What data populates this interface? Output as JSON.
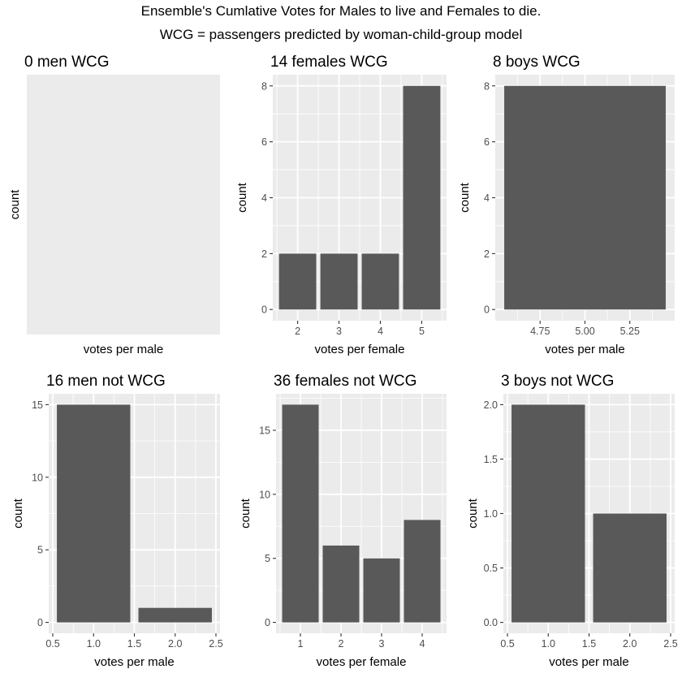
{
  "figure": {
    "title": "Ensemble's Cumlative Votes for Males to live and Females to die.",
    "subtitle": "WCG = passengers predicted by woman-child-group model"
  },
  "colors": {
    "panel_bg": "#EBEBEB",
    "grid": "#FFFFFF",
    "bar": "#595959",
    "tick_text": "#4D4D4D",
    "text": "#000000"
  },
  "chart_data": [
    {
      "type": "bar",
      "title": "0 men WCG",
      "xlabel": "votes per male",
      "ylabel": "count",
      "empty": true,
      "bars": [],
      "xlim": [
        0,
        1
      ],
      "ylim": [
        0,
        1
      ],
      "xticks": [],
      "yticks": []
    },
    {
      "type": "bar",
      "title": "14 females WCG",
      "xlabel": "votes per female",
      "ylabel": "count",
      "bars": [
        {
          "x": 2,
          "value": 2
        },
        {
          "x": 3,
          "value": 2
        },
        {
          "x": 4,
          "value": 2
        },
        {
          "x": 5,
          "value": 8
        }
      ],
      "bar_width": 0.9,
      "xlim": [
        1.4,
        5.6
      ],
      "ylim": [
        -0.4,
        8.4
      ],
      "xticks": [
        2,
        3,
        4,
        5
      ],
      "xtick_labels": [
        "2",
        "3",
        "4",
        "5"
      ],
      "yticks": [
        0,
        2,
        4,
        6,
        8
      ],
      "ytick_labels": [
        "0",
        "2",
        "4",
        "6",
        "8"
      ]
    },
    {
      "type": "bar",
      "title": "8 boys WCG",
      "xlabel": "votes per male",
      "ylabel": "count",
      "bars": [
        {
          "x": 5,
          "value": 8
        }
      ],
      "bar_width": 0.9,
      "xlim": [
        4.5,
        5.5
      ],
      "ylim": [
        -0.4,
        8.4
      ],
      "xticks": [
        4.75,
        5.0,
        5.25
      ],
      "xtick_labels": [
        "4.75",
        "5.00",
        "5.25"
      ],
      "yticks": [
        0,
        2,
        4,
        6,
        8
      ],
      "ytick_labels": [
        "0",
        "2",
        "4",
        "6",
        "8"
      ]
    },
    {
      "type": "bar",
      "title": "16 men not WCG",
      "xlabel": "votes per male",
      "ylabel": "count",
      "bars": [
        {
          "x": 1,
          "value": 15
        },
        {
          "x": 2,
          "value": 1
        }
      ],
      "bar_width": 0.9,
      "xlim": [
        0.45,
        2.55
      ],
      "ylim": [
        -0.75,
        15.75
      ],
      "xticks": [
        0.5,
        1.0,
        1.5,
        2.0,
        2.5
      ],
      "xtick_labels": [
        "0.5",
        "1.0",
        "1.5",
        "2.0",
        "2.5"
      ],
      "yticks": [
        0,
        5,
        10,
        15
      ],
      "ytick_labels": [
        "0",
        "5",
        "10",
        "15"
      ]
    },
    {
      "type": "bar",
      "title": "36 females not WCG",
      "xlabel": "votes per female",
      "ylabel": "count",
      "bars": [
        {
          "x": 1,
          "value": 17
        },
        {
          "x": 2,
          "value": 6
        },
        {
          "x": 3,
          "value": 5
        },
        {
          "x": 4,
          "value": 8
        }
      ],
      "bar_width": 0.9,
      "xlim": [
        0.4,
        4.6
      ],
      "ylim": [
        -0.85,
        17.85
      ],
      "xticks": [
        1,
        2,
        3,
        4
      ],
      "xtick_labels": [
        "1",
        "2",
        "3",
        "4"
      ],
      "yticks": [
        0,
        5,
        10,
        15
      ],
      "ytick_labels": [
        "0",
        "5",
        "10",
        "15"
      ]
    },
    {
      "type": "bar",
      "title": "3 boys not WCG",
      "xlabel": "votes per male",
      "ylabel": "count",
      "bars": [
        {
          "x": 1,
          "value": 2
        },
        {
          "x": 2,
          "value": 1
        }
      ],
      "bar_width": 0.9,
      "xlim": [
        0.45,
        2.55
      ],
      "ylim": [
        -0.1,
        2.1
      ],
      "xticks": [
        0.5,
        1.0,
        1.5,
        2.0,
        2.5
      ],
      "xtick_labels": [
        "0.5",
        "1.0",
        "1.5",
        "2.0",
        "2.5"
      ],
      "yticks": [
        0,
        0.5,
        1.0,
        1.5,
        2.0
      ],
      "ytick_labels": [
        "0.0",
        "0.5",
        "1.0",
        "1.5",
        "2.0"
      ]
    }
  ]
}
